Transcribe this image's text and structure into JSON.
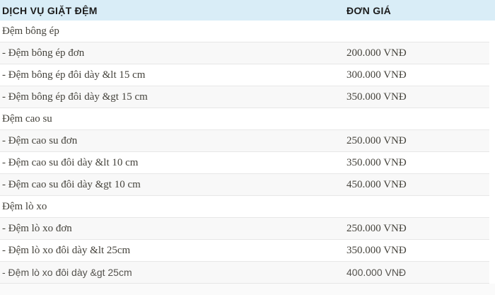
{
  "table": {
    "header": {
      "service_label": "DỊCH VỤ GIẶT ĐỆM",
      "price_label": "ĐƠN GIÁ"
    },
    "rows": [
      {
        "label": "Đệm bông ép",
        "price": ""
      },
      {
        "label": "- Đệm bông ép đơn",
        "price": "200.000 VNĐ"
      },
      {
        "label": "- Đệm bông ép đôi dày &lt 15 cm",
        "price": "300.000 VNĐ"
      },
      {
        "label": "- Đệm bông ép đôi dày &gt 15 cm",
        "price": "350.000 VNĐ"
      },
      {
        "label": "Đệm cao su",
        "price": ""
      },
      {
        "label": "- Đệm cao su đơn",
        "price": "250.000 VNĐ"
      },
      {
        "label": "- Đệm cao su đôi dày &lt 10 cm",
        "price": "350.000 VNĐ"
      },
      {
        "label": "- Đệm cao su đôi dày &gt 10 cm",
        "price": "450.000 VNĐ"
      },
      {
        "label": "Đệm lò xo",
        "price": ""
      },
      {
        "label": "- Đệm lò xo đơn",
        "price": "250.000 VNĐ"
      },
      {
        "label": "- Đệm lò xo đôi dày &lt 25cm",
        "price": "350.000 VNĐ"
      },
      {
        "label": "- Đệm lò xo đôi dày &gt 25cm",
        "price": "400.000 VNĐ"
      }
    ]
  },
  "colors": {
    "header_bg": "#d9edf7",
    "stripe_bg": "#f8f8f8",
    "row_border": "#e7e7e7",
    "body_text": "#45433c",
    "header_text": "#1c1c1c"
  }
}
